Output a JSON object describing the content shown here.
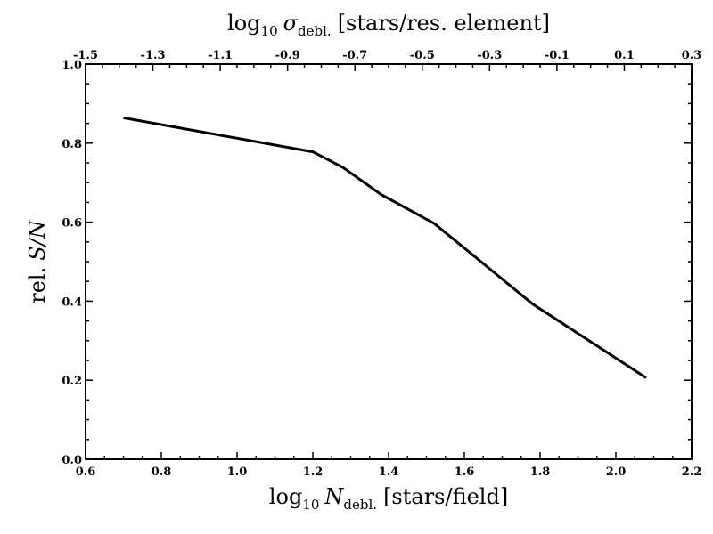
{
  "chart_data": {
    "type": "line",
    "xlabel": {
      "prefix": "log",
      "prefix_sub": "10",
      "var": "N",
      "var_sub": "debl.",
      "suffix": "[stars/field]"
    },
    "x2label": {
      "prefix": "log",
      "prefix_sub": "10",
      "var": "σ",
      "var_sub": "debl.",
      "suffix": "[stars/res. element]"
    },
    "ylabel": {
      "prefix": "rel.",
      "var": "S/N"
    },
    "xlim": [
      0.6,
      2.2
    ],
    "ylim": [
      0.0,
      1.0
    ],
    "x2lim": [
      -1.5,
      0.3
    ],
    "xticks": [
      {
        "value": 0.6,
        "label": "0.6"
      },
      {
        "value": 0.8,
        "label": "0.8"
      },
      {
        "value": 1.0,
        "label": "1.0"
      },
      {
        "value": 1.2,
        "label": "1.2"
      },
      {
        "value": 1.4,
        "label": "1.4"
      },
      {
        "value": 1.6,
        "label": "1.6"
      },
      {
        "value": 1.8,
        "label": "1.8"
      },
      {
        "value": 2.0,
        "label": "2.0"
      },
      {
        "value": 2.2,
        "label": "2.2"
      }
    ],
    "yticks": [
      {
        "value": 0.0,
        "label": "0.0"
      },
      {
        "value": 0.2,
        "label": "0.2"
      },
      {
        "value": 0.4,
        "label": "0.4"
      },
      {
        "value": 0.6,
        "label": "0.6"
      },
      {
        "value": 0.8,
        "label": "0.8"
      },
      {
        "value": 1.0,
        "label": "1.0"
      }
    ],
    "x2ticks": [
      {
        "value": -1.5,
        "label": "-1.5"
      },
      {
        "value": -1.3,
        "label": "-1.3"
      },
      {
        "value": -1.1,
        "label": "-1.1"
      },
      {
        "value": -0.9,
        "label": "-0.9"
      },
      {
        "value": -0.7,
        "label": "-0.7"
      },
      {
        "value": -0.5,
        "label": "-0.5"
      },
      {
        "value": -0.3,
        "label": "-0.3"
      },
      {
        "value": -0.1,
        "label": "-0.1"
      },
      {
        "value": 0.1,
        "label": "0.1"
      },
      {
        "value": 0.3,
        "label": "0.3"
      }
    ],
    "series": [
      {
        "color": "#000000",
        "x": [
          0.7,
          1.2,
          1.28,
          1.38,
          1.52,
          1.78,
          2.08
        ],
        "y": [
          0.864,
          0.778,
          0.738,
          0.67,
          0.597,
          0.393,
          0.206
        ]
      }
    ],
    "grid": false
  }
}
